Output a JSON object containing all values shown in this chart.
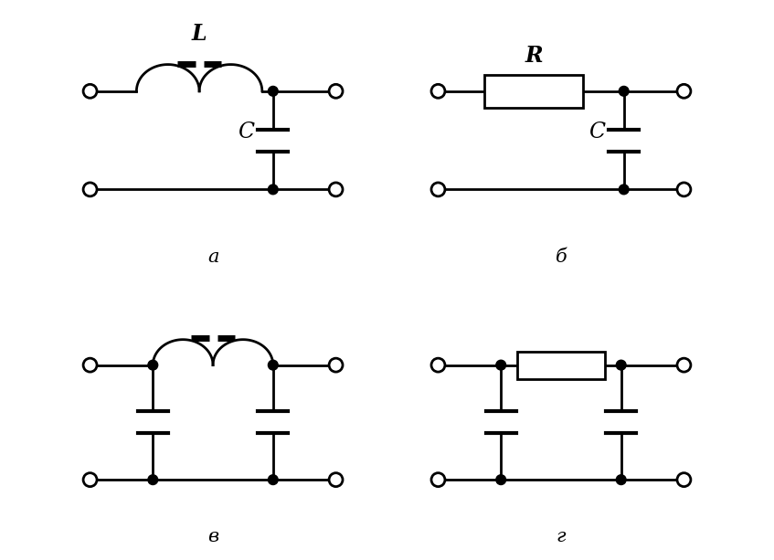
{
  "bg_color": "#ffffff",
  "line_color": "#000000",
  "line_width": 2.0,
  "label_a": "а",
  "label_b": "б",
  "label_v": "в",
  "label_g": "г",
  "label_L": "L",
  "label_C": "C",
  "label_R": "R"
}
